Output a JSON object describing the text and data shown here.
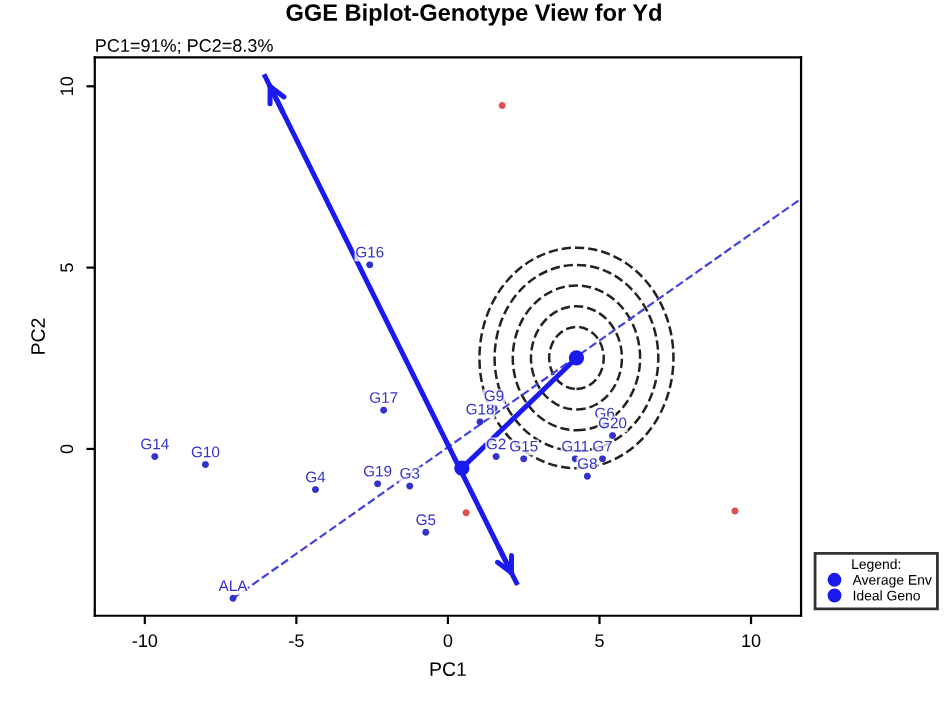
{
  "chart_data": {
    "type": "scatter",
    "title": "GGE Biplot-Genotype View for Yd",
    "subtitle": "PC1=91%; PC2=8.3%",
    "xlabel": "PC1",
    "ylabel": "PC2",
    "xlim": [
      -11.65,
      11.65
    ],
    "ylim": [
      -4.6,
      10.8
    ],
    "xticks": [
      -10,
      -5,
      0,
      5,
      10
    ],
    "yticks": [
      0,
      5,
      10
    ],
    "grid": false,
    "legend": "bottom right",
    "legend_title": "Legend:",
    "series": [
      {
        "color": "#3333cc",
        "marker": "circle",
        "x": [
          -9.67,
          -8.0,
          -4.37,
          -2.12,
          -2.32,
          -1.26,
          -0.73,
          -2.58,
          -7.09,
          1.06,
          1.52,
          1.59,
          2.5,
          4.2,
          4.6,
          5.1,
          5.17,
          5.43
        ],
        "values": [
          -0.21,
          -0.43,
          -1.12,
          1.07,
          -0.96,
          -1.02,
          -2.3,
          5.08,
          -4.12,
          0.75,
          1.12,
          -0.21,
          -0.27,
          -0.27,
          -0.75,
          -0.27,
          0.64,
          0.37
        ],
        "value_labels": [
          "G14",
          "G10",
          "G4",
          "G17",
          "G19",
          "G3",
          "G5",
          "G16",
          "ALA",
          "G18",
          "G9",
          "G2",
          "G15",
          "G11",
          "G8",
          "G7",
          "G6",
          "G20"
        ]
      },
      {
        "color": "#e05050",
        "marker": "circle",
        "x": [
          1.79,
          0.6,
          9.47
        ],
        "values": [
          9.47,
          -1.76,
          -1.71
        ]
      },
      {
        "type": "line",
        "color": "#4444dd",
        "line_style": "dashed",
        "x": [
          -7.09,
          11.65
        ],
        "values": [
          -4.12,
          6.9
        ]
      },
      {
        "type": "line",
        "color": "#1a1aee",
        "line_style": "solid",
        "x": [
          2.26,
          -6.03
        ],
        "values": [
          -3.69,
          10.27
        ]
      },
      {
        "type": "line",
        "color": "#1a1aee",
        "line_style": "solid",
        "x": [
          0.46,
          4.24
        ],
        "values": [
          -0.53,
          2.51
        ]
      },
      {
        "name": "Average Env",
        "color": "#1a1aee",
        "marker": "circle",
        "x": [
          0.46
        ],
        "values": [
          -0.53
        ]
      },
      {
        "name": "Ideal Geno",
        "color": "#1a1aee",
        "marker": "circle",
        "x": [
          4.24
        ],
        "values": [
          2.51
        ]
      }
    ]
  }
}
